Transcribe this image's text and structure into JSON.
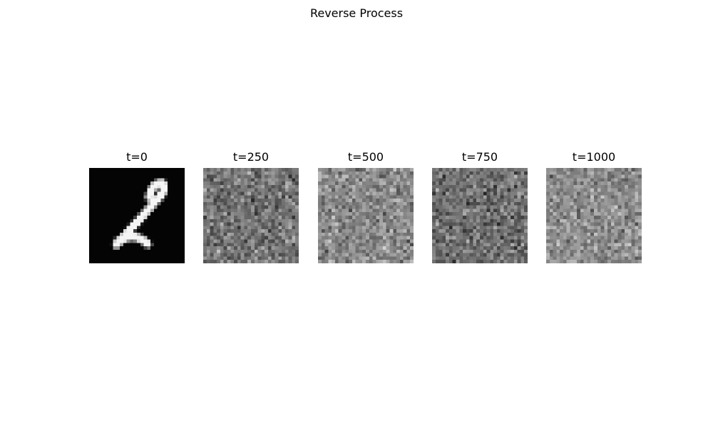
{
  "figure": {
    "title": "Reverse Process"
  },
  "panels": [
    {
      "title": "t=0",
      "content": "digit-2"
    },
    {
      "title": "t=250",
      "content": "noise"
    },
    {
      "title": "t=500",
      "content": "noise"
    },
    {
      "title": "t=750",
      "content": "noise"
    },
    {
      "title": "t=1000",
      "content": "noise"
    }
  ],
  "image_grid": {
    "rows": 28,
    "cols": 28,
    "colormap": "gray"
  }
}
